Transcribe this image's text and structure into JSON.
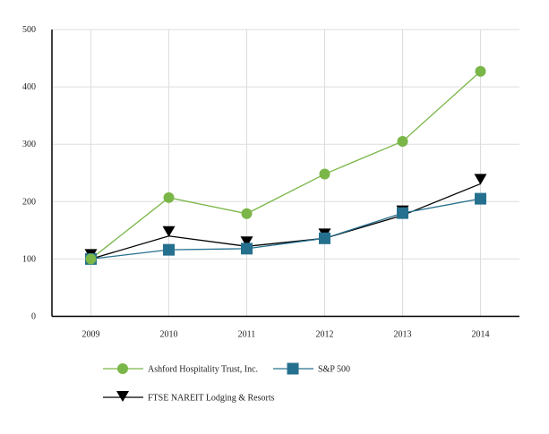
{
  "chart_data": {
    "type": "line",
    "title": "",
    "xlabel": "",
    "ylabel": "",
    "categories": [
      "2009",
      "2010",
      "2011",
      "2012",
      "2013",
      "2014"
    ],
    "ylim": [
      0,
      500
    ],
    "yticks": [
      0,
      100,
      200,
      300,
      400,
      500
    ],
    "grid": true,
    "legend_position": "bottom",
    "series": [
      {
        "name": "Ashford Hospitality Trust, Inc.",
        "color": "#7ab648",
        "marker": "circle",
        "values": [
          100,
          207,
          179,
          248,
          305,
          427
        ]
      },
      {
        "name": "S&P 500",
        "color": "#26708f",
        "marker": "square",
        "values": [
          100,
          116,
          118,
          136,
          180,
          205
        ]
      },
      {
        "name": "FTSE NAREIT Lodging & Resorts",
        "color": "#000000",
        "marker": "triangle-down",
        "values": [
          100,
          140,
          122,
          136,
          176,
          231
        ]
      }
    ]
  }
}
